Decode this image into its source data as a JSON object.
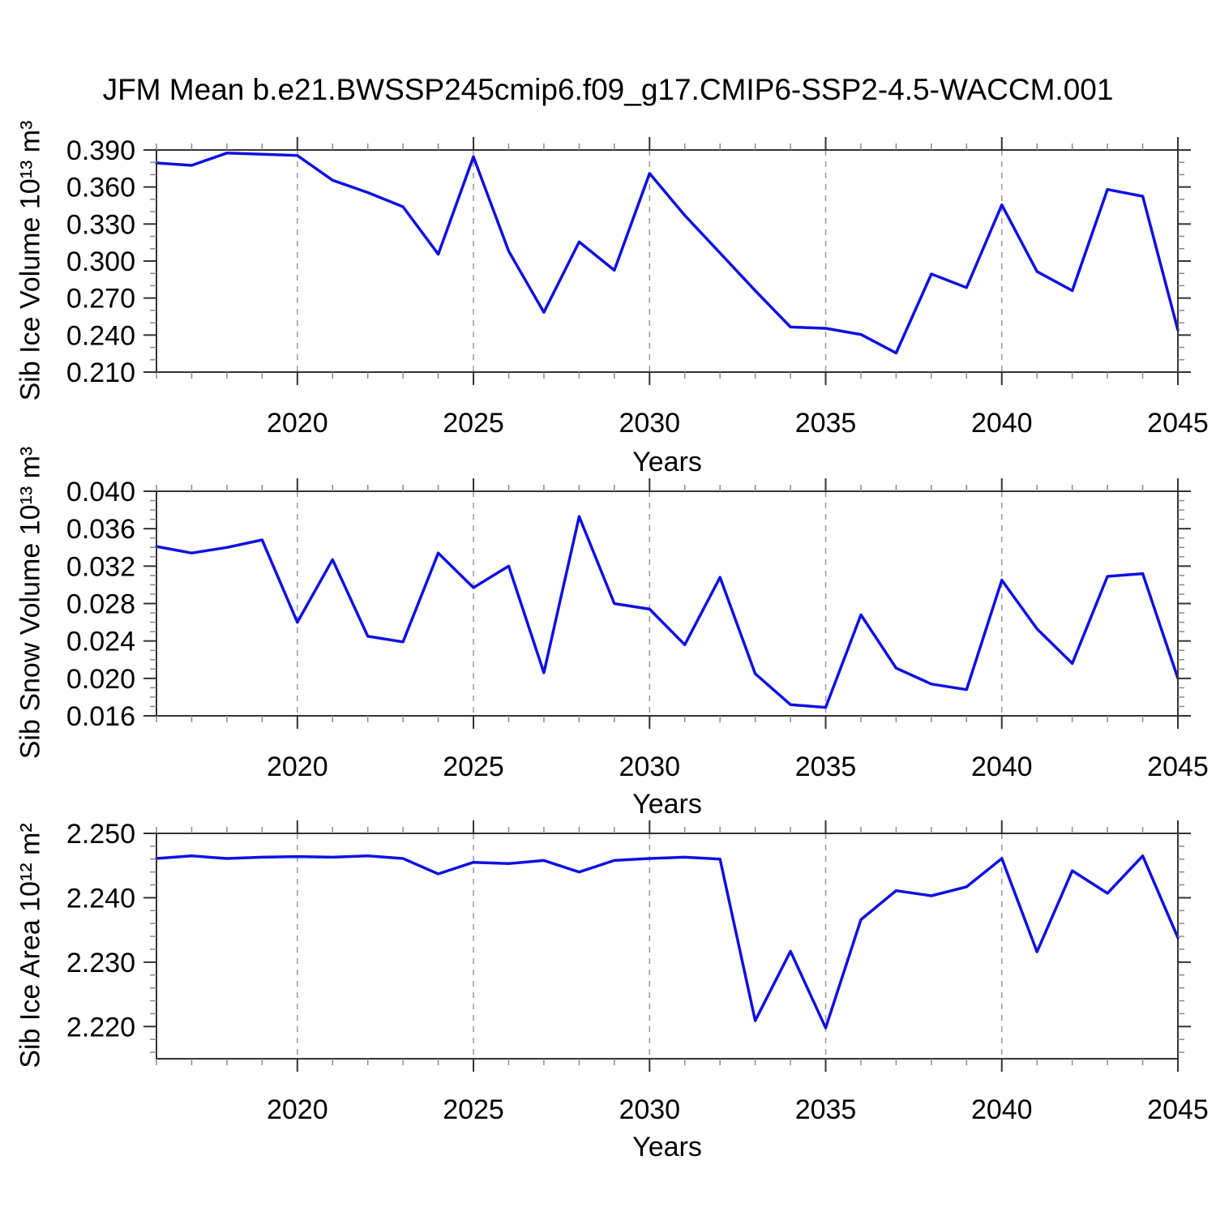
{
  "title": "JFM Mean b.e21.BWSSP245cmip6.f09_g17.CMIP6-SSP2-4.5-WACCM.001",
  "colors": {
    "line": "#0f10e0",
    "frame": "#333333",
    "major_tick": "#333333",
    "minor_tick": "#8a8a8a",
    "grid": "#999999",
    "text": "#000000"
  },
  "x_axis": {
    "label": "Years",
    "min": 2016,
    "max": 2045,
    "minor_step": 1,
    "tick_years": [
      2020,
      2025,
      2030,
      2035,
      2040,
      2045
    ],
    "tick_labels": [
      "2020",
      "2025",
      "2030",
      "2035",
      "2040",
      "2045"
    ],
    "grid_years": [
      2020,
      2025,
      2030,
      2035,
      2040
    ]
  },
  "years": [
    2016,
    2017,
    2018,
    2019,
    2020,
    2021,
    2022,
    2023,
    2024,
    2025,
    2026,
    2027,
    2028,
    2029,
    2030,
    2031,
    2032,
    2033,
    2034,
    2035,
    2036,
    2037,
    2038,
    2039,
    2040,
    2041,
    2042,
    2043,
    2044,
    2045
  ],
  "chart_data": [
    {
      "type": "line",
      "name": "sib-ice-volume",
      "ylabel": "Sib Ice Volume 10¹³ m³",
      "xlabel": "Years",
      "ylim": [
        0.21,
        0.39
      ],
      "yticks": [
        0.39,
        0.36,
        0.33,
        0.3,
        0.27,
        0.24,
        0.21
      ],
      "ytick_labels": [
        "0.390",
        "0.360",
        "0.330",
        "0.300",
        "0.270",
        "0.240",
        "0.210"
      ],
      "y_minor_step": 0.01,
      "grid": "vertical-dashed",
      "values": [
        0.3795,
        0.3775,
        0.3875,
        0.3865,
        0.3855,
        0.3655,
        0.3555,
        0.344,
        0.3055,
        0.3845,
        0.308,
        0.2585,
        0.3155,
        0.2925,
        0.371,
        0.337,
        0.3065,
        0.276,
        0.2465,
        0.2455,
        0.2405,
        0.2255,
        0.2895,
        0.2785,
        0.3455,
        0.2915,
        0.276,
        0.358,
        0.3525,
        0.244
      ]
    },
    {
      "type": "line",
      "name": "sib-snow-volume",
      "ylabel": "Sib Snow Volume 10¹³ m³",
      "xlabel": "Years",
      "ylim": [
        0.016,
        0.04
      ],
      "yticks": [
        0.04,
        0.036,
        0.032,
        0.028,
        0.024,
        0.02,
        0.016
      ],
      "ytick_labels": [
        "0.040",
        "0.036",
        "0.032",
        "0.028",
        "0.024",
        "0.020",
        "0.016"
      ],
      "y_minor_step": 0.001,
      "grid": "vertical-dashed",
      "values": [
        0.0341,
        0.0334,
        0.034,
        0.0348,
        0.026,
        0.0327,
        0.0245,
        0.0239,
        0.0334,
        0.0297,
        0.032,
        0.0206,
        0.0373,
        0.028,
        0.0274,
        0.0236,
        0.0308,
        0.0205,
        0.0172,
        0.0169,
        0.0268,
        0.0211,
        0.0194,
        0.0188,
        0.0305,
        0.0253,
        0.0216,
        0.0309,
        0.0312,
        0.02
      ]
    },
    {
      "type": "line",
      "name": "sib-ice-area",
      "ylabel": "Sib Ice Area 10¹² m²",
      "xlabel": "Years",
      "ylim": [
        2.215,
        2.25
      ],
      "yticks": [
        2.25,
        2.24,
        2.23,
        2.22
      ],
      "ytick_labels": [
        "2.250",
        "2.240",
        "2.230",
        "2.220"
      ],
      "y_minor_step": 0.002,
      "grid": "vertical-dashed",
      "values": [
        2.2461,
        2.2465,
        2.2461,
        2.2463,
        2.2464,
        2.2463,
        2.2465,
        2.2461,
        2.2437,
        2.2455,
        2.2453,
        2.2458,
        2.244,
        2.2458,
        2.2461,
        2.2463,
        2.246,
        2.2209,
        2.2317,
        2.2198,
        2.2366,
        2.2411,
        2.2403,
        2.2417,
        2.2461,
        2.2316,
        2.2442,
        2.2407,
        2.2465,
        2.2338
      ]
    }
  ]
}
